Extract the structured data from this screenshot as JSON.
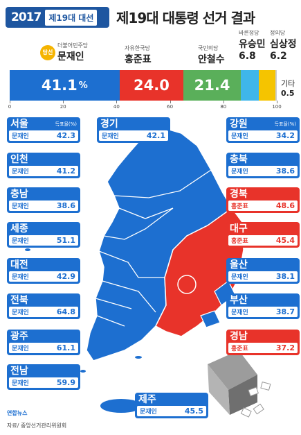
{
  "header": {
    "logo_year": "2017",
    "logo_event": "제19대 대선",
    "title": "제19대 대통령 선거 결과"
  },
  "candidates": [
    {
      "party": "더불어민주당",
      "name": "문재인",
      "badge": "당선",
      "value": "41.1",
      "unit": "%"
    },
    {
      "party": "자유한국당",
      "name": "홍준표",
      "value": "24.0"
    },
    {
      "party": "국민의당",
      "name": "안철수",
      "value": "21.4"
    },
    {
      "party": "바른정당",
      "name": "유승민",
      "value": "6.8"
    },
    {
      "party": "정의당",
      "name": "심상정",
      "value": "6.2"
    },
    {
      "party": "",
      "name": "기타",
      "value": "0.5"
    }
  ],
  "colors": {
    "moon": "#1d6fd0",
    "hong": "#e8332a",
    "ahn": "#5aaf5a",
    "yoo": "#3fb6ea",
    "sim": "#f5c400",
    "other": "#cccccc"
  },
  "chart_data": [
    {
      "type": "bar",
      "orientation": "horizontal-stacked",
      "categories": [
        "문재인",
        "홍준표",
        "안철수",
        "유승민",
        "심상정",
        "기타"
      ],
      "values": [
        41.1,
        24.0,
        21.4,
        6.8,
        6.2,
        0.5
      ],
      "xlim": [
        0,
        100
      ],
      "xticks": [
        "0",
        "20",
        "40",
        "60",
        "80",
        "100"
      ]
    }
  ],
  "region_label": "득표율(%)",
  "regions": [
    {
      "id": "seoul",
      "name": "서울",
      "winner": "문재인",
      "value": "42.3",
      "color": "blue",
      "sub": "득표율(%)"
    },
    {
      "id": "gyeonggi",
      "name": "경기",
      "winner": "문재인",
      "value": "42.1",
      "color": "blue"
    },
    {
      "id": "gangwon",
      "name": "강원",
      "winner": "문재인",
      "value": "34.2",
      "color": "blue",
      "sub": "득표율(%)"
    },
    {
      "id": "incheon",
      "name": "인천",
      "winner": "문재인",
      "value": "41.2",
      "color": "blue"
    },
    {
      "id": "chungbuk",
      "name": "충북",
      "winner": "문재인",
      "value": "38.6",
      "color": "blue"
    },
    {
      "id": "chungnam",
      "name": "충남",
      "winner": "문재인",
      "value": "38.6",
      "color": "blue"
    },
    {
      "id": "gyeongbuk",
      "name": "경북",
      "winner": "홍준표",
      "value": "48.6",
      "color": "red"
    },
    {
      "id": "sejong",
      "name": "세종",
      "winner": "문재인",
      "value": "51.1",
      "color": "blue"
    },
    {
      "id": "daegu",
      "name": "대구",
      "winner": "홍준표",
      "value": "45.4",
      "color": "red"
    },
    {
      "id": "daejeon",
      "name": "대전",
      "winner": "문재인",
      "value": "42.9",
      "color": "blue"
    },
    {
      "id": "ulsan",
      "name": "울산",
      "winner": "문재인",
      "value": "38.1",
      "color": "blue"
    },
    {
      "id": "jeonbuk",
      "name": "전북",
      "winner": "문재인",
      "value": "64.8",
      "color": "blue"
    },
    {
      "id": "busan",
      "name": "부산",
      "winner": "문재인",
      "value": "38.7",
      "color": "blue"
    },
    {
      "id": "gwangju",
      "name": "광주",
      "winner": "문재인",
      "value": "61.1",
      "color": "blue"
    },
    {
      "id": "gyeongnam",
      "name": "경남",
      "winner": "홍준표",
      "value": "37.2",
      "color": "red"
    },
    {
      "id": "jeonnam",
      "name": "전남",
      "winner": "문재인",
      "value": "59.9",
      "color": "blue"
    },
    {
      "id": "jeju",
      "name": "제주",
      "winner": "문재인",
      "value": "45.5",
      "color": "blue"
    }
  ],
  "footer": {
    "agency": "연합뉴스",
    "source": "자료/ 중앙선거관리위원회"
  }
}
